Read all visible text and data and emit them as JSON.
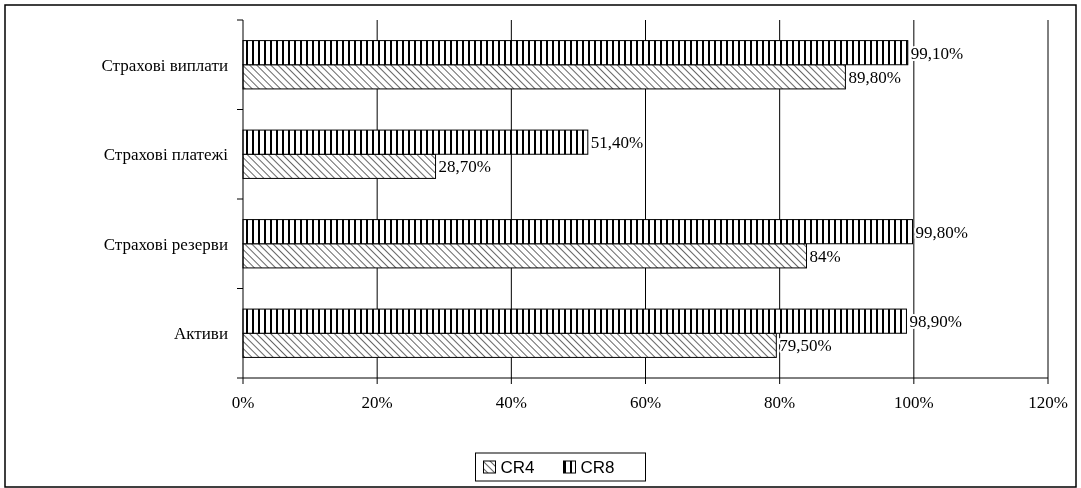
{
  "chart_data": {
    "type": "bar",
    "orientation": "horizontal",
    "categories": [
      "Страхові виплати",
      "Страхові платежі",
      "Страхові резерви",
      "Активи"
    ],
    "series": [
      {
        "name": "CR4",
        "color": "#000000",
        "values": [
          89.8,
          28.7,
          84,
          79.5
        ],
        "value_labels": [
          "89,80%",
          "28,70%",
          "84%",
          "79,50%"
        ]
      },
      {
        "name": "CR8",
        "color": "#000000",
        "values": [
          99.1,
          51.4,
          99.8,
          98.9
        ],
        "value_labels": [
          "99,10%",
          "51,40%",
          "99,80%",
          "98,90%"
        ]
      }
    ],
    "xlim": [
      0,
      120
    ],
    "xticks": [
      {
        "value": 0,
        "label": "0%"
      },
      {
        "value": 20,
        "label": "20%"
      },
      {
        "value": 40,
        "label": "40%"
      },
      {
        "value": 60,
        "label": "60%"
      },
      {
        "value": 80,
        "label": "80%"
      },
      {
        "value": 100,
        "label": "100%"
      },
      {
        "value": 120,
        "label": "120%"
      }
    ],
    "grid": "x",
    "legend": "bottom"
  }
}
